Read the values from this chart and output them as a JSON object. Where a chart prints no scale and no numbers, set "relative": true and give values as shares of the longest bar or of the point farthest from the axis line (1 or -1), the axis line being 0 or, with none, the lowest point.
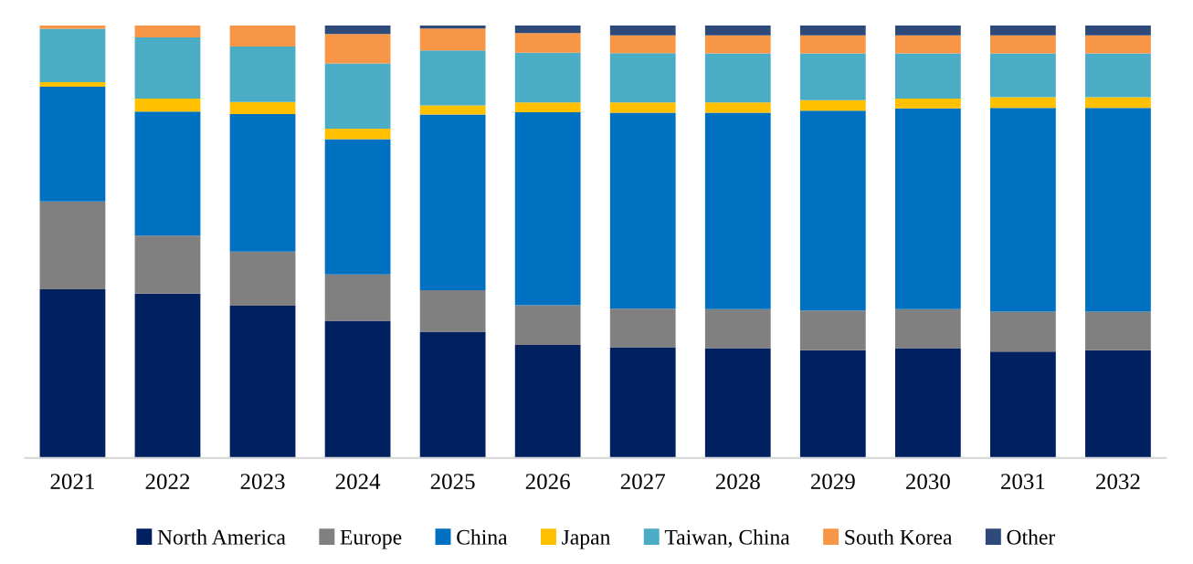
{
  "chart_data": {
    "type": "bar",
    "stacked": true,
    "relative": true,
    "legend": "bottom",
    "grid": false,
    "categories": [
      "2021",
      "2022",
      "2023",
      "2024",
      "2025",
      "2026",
      "2027",
      "2028",
      "2029",
      "2030",
      "2031",
      "2032"
    ],
    "series": [
      {
        "name": "North America",
        "color": "#002060",
        "values": [
          0.39,
          0.38,
          0.352,
          0.317,
          0.292,
          0.261,
          0.256,
          0.254,
          0.249,
          0.254,
          0.246,
          0.249
        ]
      },
      {
        "name": "Europe",
        "color": "#808080",
        "values": [
          0.203,
          0.134,
          0.125,
          0.107,
          0.096,
          0.092,
          0.089,
          0.09,
          0.092,
          0.09,
          0.092,
          0.089
        ]
      },
      {
        "name": "China",
        "color": "#0070c0",
        "values": [
          0.265,
          0.287,
          0.318,
          0.313,
          0.406,
          0.446,
          0.453,
          0.454,
          0.462,
          0.464,
          0.471,
          0.471
        ]
      },
      {
        "name": "Japan",
        "color": "#ffc000",
        "values": [
          0.011,
          0.03,
          0.028,
          0.024,
          0.021,
          0.023,
          0.024,
          0.024,
          0.024,
          0.023,
          0.025,
          0.025
        ]
      },
      {
        "name": "Taiwan, China",
        "color": "#4bacc6",
        "values": [
          0.123,
          0.141,
          0.128,
          0.151,
          0.127,
          0.115,
          0.114,
          0.113,
          0.108,
          0.104,
          0.101,
          0.101
        ]
      },
      {
        "name": "South Korea",
        "color": "#f79646",
        "values": [
          0.008,
          0.028,
          0.049,
          0.068,
          0.051,
          0.045,
          0.041,
          0.042,
          0.042,
          0.042,
          0.042,
          0.042
        ]
      },
      {
        "name": "Other",
        "color": "#2e4a7a",
        "values": [
          0,
          0,
          0,
          0.02,
          0.007,
          0.018,
          0.023,
          0.023,
          0.023,
          0.023,
          0.023,
          0.023
        ]
      }
    ]
  }
}
